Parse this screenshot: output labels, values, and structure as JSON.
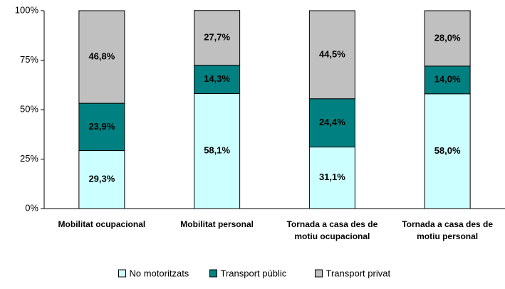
{
  "chart_data": {
    "type": "stacked_bar",
    "categories": [
      "Mobilitat ocupacional",
      "Mobilitat personal",
      "Tornada a casa des de motiu ocupacional",
      "Tornada a casa des de motiu personal"
    ],
    "series": [
      {
        "name": "No motoritzats",
        "color": "#ccffff",
        "values": [
          29.3,
          58.1,
          31.1,
          58.0
        ],
        "value_labels": [
          "29,3%",
          "58,1%",
          "31,1%",
          "58,0%"
        ]
      },
      {
        "name": "Transport públic",
        "color": "#008080",
        "values": [
          23.9,
          14.3,
          24.4,
          14.0
        ],
        "value_labels": [
          "23,9%",
          "14,3%",
          "24,4%",
          "14,0%"
        ]
      },
      {
        "name": "Transport privat",
        "color": "#c0c0c0",
        "values": [
          46.8,
          27.7,
          44.5,
          28.0
        ],
        "value_labels": [
          "46,8%",
          "27,7%",
          "44,5%",
          "28,0%"
        ]
      }
    ],
    "ylim": [
      0,
      100
    ],
    "yticks": [
      {
        "value": 0,
        "label": "0%"
      },
      {
        "value": 25,
        "label": "25%"
      },
      {
        "value": 50,
        "label": "50%"
      },
      {
        "value": 75,
        "label": "75%"
      },
      {
        "value": 100,
        "label": "100%"
      }
    ],
    "legend": "bottom"
  }
}
